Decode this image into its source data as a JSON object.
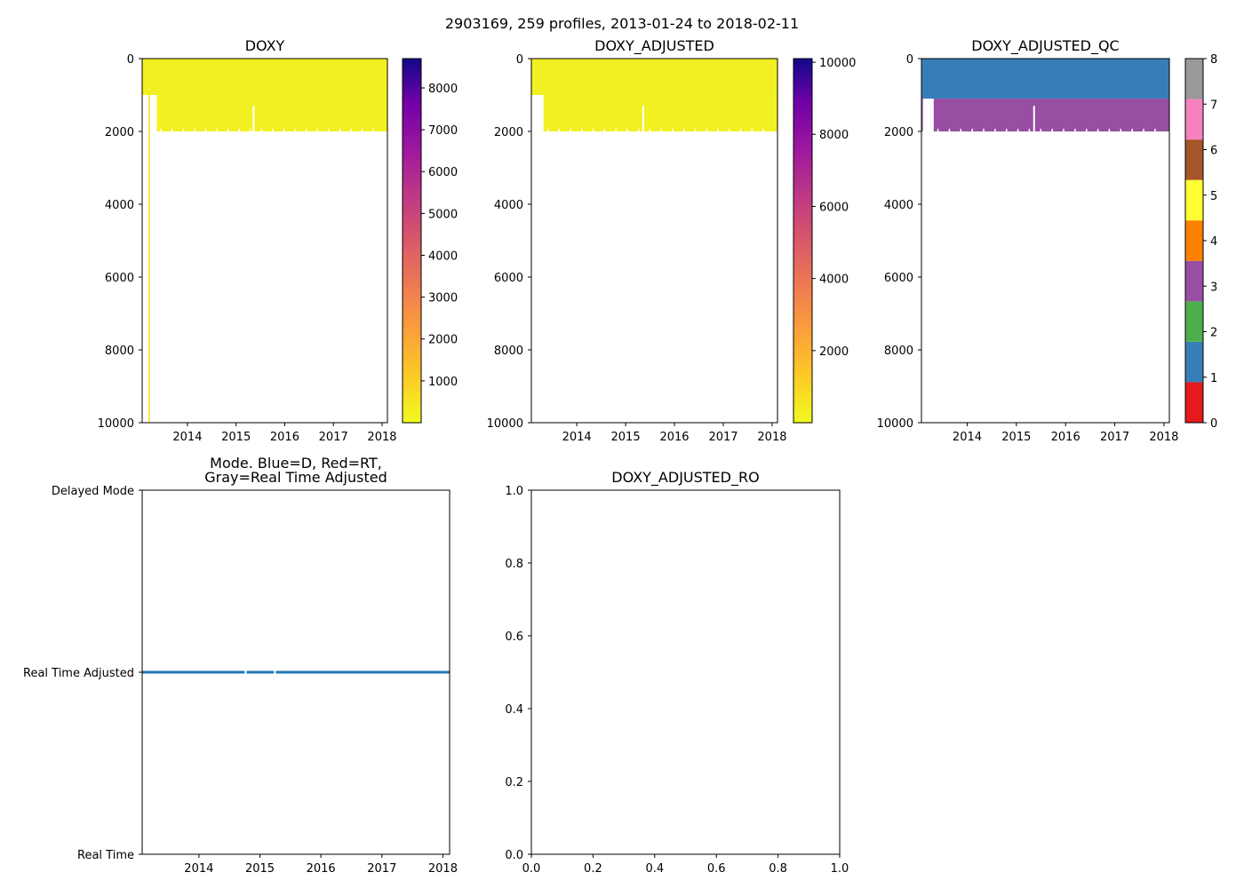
{
  "figure": {
    "suptitle": "2903169, 259 profiles, 2013-01-24 to 2018-02-11"
  },
  "chart_data": [
    {
      "id": "doxy",
      "type": "heatmap",
      "title": "DOXY",
      "xlabel": "",
      "ylabel": "",
      "x_range": [
        2013.07,
        2018.11
      ],
      "ylim": [
        10000,
        0
      ],
      "x_ticks": [
        2014,
        2015,
        2016,
        2017,
        2018
      ],
      "x_tick_labels": [
        "2014",
        "2015",
        "2016",
        "2017",
        "2018"
      ],
      "y_ticks": [
        0,
        2000,
        4000,
        6000,
        8000,
        10000
      ],
      "y_tick_labels": [
        "0",
        "2000",
        "4000",
        "6000",
        "8000",
        "10000"
      ],
      "colormap": "plasma_r",
      "colorbar": {
        "min": 0,
        "max": 8700,
        "ticks": [
          1000,
          2000,
          3000,
          4000,
          5000,
          6000,
          7000,
          8000
        ],
        "tick_labels": [
          "1000",
          "2000",
          "3000",
          "4000",
          "5000",
          "6000",
          "7000",
          "8000"
        ]
      },
      "data_regions": [
        {
          "x_start": 2013.07,
          "x_end": 2018.11,
          "depth_top": 0,
          "depth_bottom": 1000,
          "value": 210
        },
        {
          "x_start": 2013.37,
          "x_end": 2018.11,
          "depth_top": 1000,
          "depth_bottom": 2000,
          "value": 190
        },
        {
          "x_start": 2013.2,
          "x_end": 2013.23,
          "depth_top": 1000,
          "depth_bottom": 10000,
          "value": 500
        }
      ],
      "gap_years": [
        2015.36
      ]
    },
    {
      "id": "doxy_adjusted",
      "type": "heatmap",
      "title": "DOXY_ADJUSTED",
      "xlabel": "",
      "ylabel": "",
      "x_range": [
        2013.07,
        2018.11
      ],
      "ylim": [
        10000,
        0
      ],
      "x_ticks": [
        2014,
        2015,
        2016,
        2017,
        2018
      ],
      "x_tick_labels": [
        "2014",
        "2015",
        "2016",
        "2017",
        "2018"
      ],
      "y_ticks": [
        0,
        2000,
        4000,
        6000,
        8000,
        10000
      ],
      "y_tick_labels": [
        "0",
        "2000",
        "4000",
        "6000",
        "8000",
        "10000"
      ],
      "colormap": "plasma_r",
      "colorbar": {
        "min": 0,
        "max": 10100,
        "ticks": [
          2000,
          4000,
          6000,
          8000,
          10000
        ],
        "tick_labels": [
          "2000",
          "4000",
          "6000",
          "8000",
          "10000"
        ]
      },
      "data_regions": [
        {
          "x_start": 2013.07,
          "x_end": 2018.11,
          "depth_top": 0,
          "depth_bottom": 1000,
          "value": 230
        },
        {
          "x_start": 2013.32,
          "x_end": 2018.11,
          "depth_top": 1000,
          "depth_bottom": 2000,
          "value": 210
        }
      ],
      "gap_years": [
        2015.36
      ]
    },
    {
      "id": "doxy_adjusted_qc",
      "type": "heatmap",
      "title": "DOXY_ADJUSTED_QC",
      "xlabel": "",
      "ylabel": "",
      "x_range": [
        2013.07,
        2018.11
      ],
      "ylim": [
        10000,
        0
      ],
      "x_ticks": [
        2014,
        2015,
        2016,
        2017,
        2018
      ],
      "x_tick_labels": [
        "2014",
        "2015",
        "2016",
        "2017",
        "2018"
      ],
      "y_ticks": [
        0,
        2000,
        4000,
        6000,
        8000,
        10000
      ],
      "y_tick_labels": [
        "0",
        "2000",
        "4000",
        "6000",
        "8000",
        "10000"
      ],
      "colorbar": {
        "min": 0,
        "max": 8,
        "ticks": [
          0,
          1,
          2,
          3,
          4,
          5,
          6,
          7,
          8
        ],
        "tick_labels": [
          "0",
          "1",
          "2",
          "3",
          "4",
          "5",
          "6",
          "7",
          "8"
        ],
        "categories": [
          "#e41a1c",
          "#377eb8",
          "#4daf4a",
          "#984ea3",
          "#ff7f00",
          "#ffff33",
          "#a65628",
          "#f781bf",
          "#999999"
        ]
      },
      "data_regions": [
        {
          "x_start": 2013.07,
          "x_end": 2018.11,
          "depth_top": 0,
          "depth_bottom": 1000,
          "flag": 1
        },
        {
          "x_start": 2013.07,
          "x_end": 2018.11,
          "depth_top": 1000,
          "depth_bottom": 1100,
          "flag": 1
        },
        {
          "x_start": 2013.32,
          "x_end": 2018.11,
          "depth_top": 1100,
          "depth_bottom": 2000,
          "flag": 3
        },
        {
          "x_start": 2013.07,
          "x_end": 2013.1,
          "depth_top": 1000,
          "depth_bottom": 2000,
          "flag": 3
        }
      ],
      "gap_years": [
        2015.36
      ]
    },
    {
      "id": "mode",
      "type": "line",
      "title": "Mode. Blue=D, Red=RT,\nGray=Real Time Adjusted",
      "title_lines": [
        "Mode. Blue=D, Red=RT,",
        "Gray=Real Time Adjusted"
      ],
      "xlabel": "",
      "ylabel": "",
      "x_range": [
        2013.07,
        2018.11
      ],
      "ylim": [
        0,
        2
      ],
      "x_ticks": [
        2014,
        2015,
        2016,
        2017,
        2018
      ],
      "x_tick_labels": [
        "2014",
        "2015",
        "2016",
        "2017",
        "2018"
      ],
      "y_ticks": [
        2,
        1,
        0
      ],
      "y_tick_labels": [
        "Delayed Mode",
        "Real Time Adjusted",
        "Real Time"
      ],
      "series": [
        {
          "name": "mode",
          "color": "#1f77b4",
          "y": 1,
          "segments": [
            [
              2013.07,
              2014.75
            ],
            [
              2014.78,
              2015.23
            ],
            [
              2015.26,
              2018.11
            ]
          ]
        }
      ]
    },
    {
      "id": "doxy_adjusted_ro",
      "type": "scatter",
      "title": "DOXY_ADJUSTED_RO",
      "xlabel": "",
      "ylabel": "",
      "xlim": [
        0,
        1
      ],
      "ylim": [
        0,
        1
      ],
      "x_ticks": [
        0,
        0.2,
        0.4,
        0.6,
        0.8,
        1
      ],
      "x_tick_labels": [
        "0.0",
        "0.2",
        "0.4",
        "0.6",
        "0.8",
        "1.0"
      ],
      "y_ticks": [
        0,
        0.2,
        0.4,
        0.6,
        0.8,
        1
      ],
      "y_tick_labels": [
        "0.0",
        "0.2",
        "0.4",
        "0.6",
        "0.8",
        "1.0"
      ],
      "series": []
    }
  ]
}
